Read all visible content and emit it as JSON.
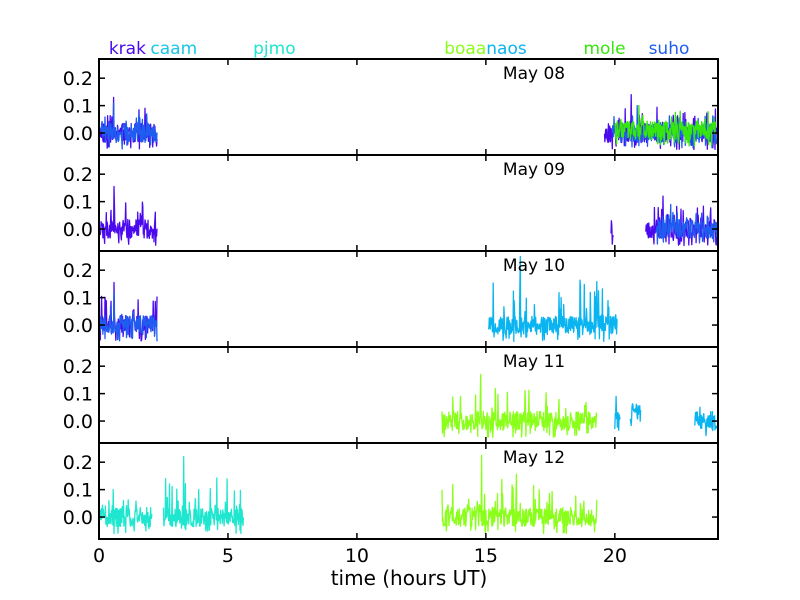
{
  "chart_data": {
    "type": "line",
    "xlabel": "time (hours UT)",
    "xlim": [
      0,
      24
    ],
    "x_ticks": [
      0,
      5,
      10,
      15,
      20
    ],
    "ylim": [
      -0.08,
      0.27
    ],
    "y_ticks": [
      0.0,
      0.1,
      0.2
    ],
    "y_tick_labels": [
      "0.0",
      "0.1",
      "0.2"
    ],
    "grid": false,
    "stations": [
      {
        "name": "krak",
        "color": "#4b0aee",
        "label_x": 1.1
      },
      {
        "name": "caam",
        "color": "#17c7e6",
        "label_x": 2.9
      },
      {
        "name": "pjmo",
        "color": "#1fe7cf",
        "label_x": 6.8
      },
      {
        "name": "boaa",
        "color": "#8aff19",
        "label_x": 14.2
      },
      {
        "name": "naos",
        "color": "#0ab4f0",
        "label_x": 15.8
      },
      {
        "name": "mole",
        "color": "#36e60e",
        "label_x": 19.6
      },
      {
        "name": "suho",
        "color": "#1f5cf0",
        "label_x": 22.1
      }
    ],
    "panels": [
      {
        "label": "May 08",
        "segments": [
          {
            "series": "krak",
            "start": 0.05,
            "end": 2.25,
            "peak": 0.13,
            "base": 0.0,
            "seed": 11
          },
          {
            "series": "suho",
            "start": 0.05,
            "end": 2.25,
            "peak": 0.11,
            "base": 0.0,
            "seed": 12
          },
          {
            "series": "krak",
            "start": 19.6,
            "end": 23.95,
            "peak": 0.14,
            "base": 0.0,
            "seed": 13
          },
          {
            "series": "suho",
            "start": 19.9,
            "end": 23.95,
            "peak": 0.1,
            "base": 0.0,
            "seed": 14
          },
          {
            "series": "mole",
            "start": 20.0,
            "end": 23.9,
            "peak": 0.1,
            "base": 0.01,
            "seed": 15
          }
        ]
      },
      {
        "label": "May 09",
        "segments": [
          {
            "series": "krak",
            "start": 0.05,
            "end": 2.25,
            "peak": 0.155,
            "base": 0.0,
            "seed": 21
          },
          {
            "series": "krak",
            "start": 19.85,
            "end": 19.95,
            "peak": 0.03,
            "base": 0.0,
            "seed": 22
          },
          {
            "series": "krak",
            "start": 21.2,
            "end": 23.95,
            "peak": 0.12,
            "base": 0.0,
            "seed": 23
          },
          {
            "series": "suho",
            "start": 21.6,
            "end": 23.95,
            "peak": 0.09,
            "base": 0.0,
            "seed": 24
          }
        ]
      },
      {
        "label": "May 10",
        "segments": [
          {
            "series": "krak",
            "start": 0.05,
            "end": 2.25,
            "peak": 0.155,
            "base": 0.0,
            "seed": 31
          },
          {
            "series": "suho",
            "start": 0.05,
            "end": 2.25,
            "peak": 0.12,
            "base": 0.0,
            "seed": 32
          },
          {
            "series": "naos",
            "start": 15.1,
            "end": 20.1,
            "peak": 0.25,
            "base": 0.0,
            "seed": 33
          }
        ]
      },
      {
        "label": "May 11",
        "segments": [
          {
            "series": "boaa",
            "start": 13.3,
            "end": 19.3,
            "peak": 0.17,
            "base": 0.0,
            "seed": 41
          },
          {
            "series": "naos",
            "start": 20.0,
            "end": 20.2,
            "peak": 0.09,
            "base": 0.0,
            "seed": 42
          },
          {
            "series": "naos",
            "start": 20.6,
            "end": 21.0,
            "peak": 0.06,
            "base": 0.03,
            "seed": 43
          },
          {
            "series": "naos",
            "start": 23.1,
            "end": 23.95,
            "peak": 0.05,
            "base": 0.0,
            "seed": 44
          }
        ]
      },
      {
        "label": "May 12",
        "segments": [
          {
            "series": "pjmo",
            "start": 0.05,
            "end": 2.05,
            "peak": 0.1,
            "base": 0.0,
            "seed": 51
          },
          {
            "series": "pjmo",
            "start": 2.5,
            "end": 5.6,
            "peak": 0.22,
            "base": 0.0,
            "seed": 52
          },
          {
            "series": "boaa",
            "start": 13.3,
            "end": 19.3,
            "peak": 0.225,
            "base": 0.0,
            "seed": 53
          }
        ]
      }
    ]
  }
}
